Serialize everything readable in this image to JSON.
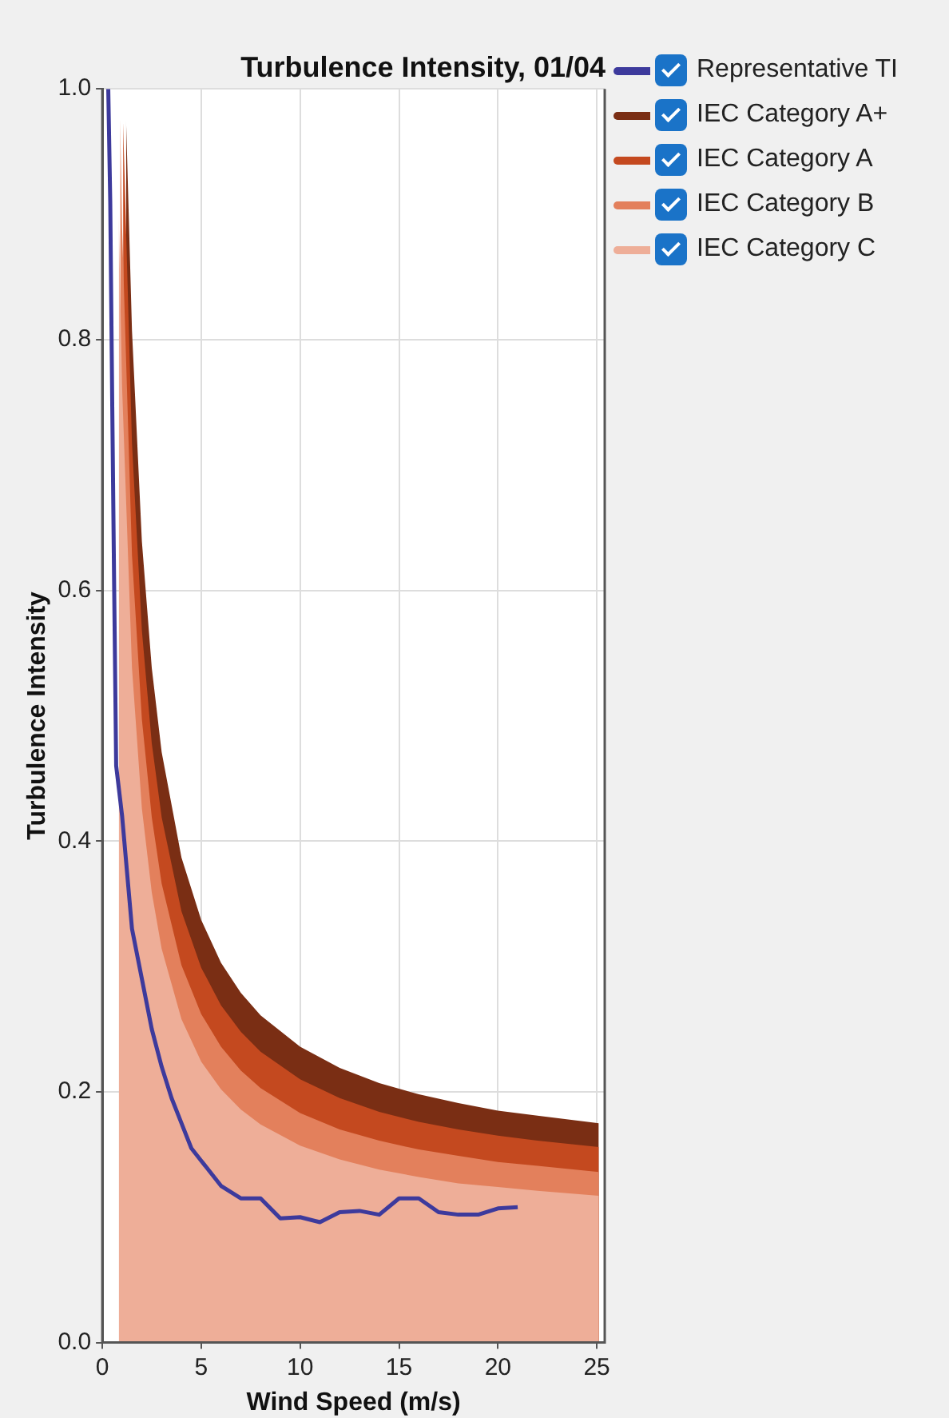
{
  "chart_data": {
    "type": "area",
    "title": "Turbulence Intensity, 01/04",
    "xlabel": "Wind Speed (m/s)",
    "ylabel": "Turbulence Intensity",
    "xlim": [
      0,
      25.4
    ],
    "xticks": [
      0,
      5,
      10,
      15,
      20,
      25
    ],
    "ylim": [
      0,
      1
    ],
    "yticks": [
      {
        "value": 0,
        "label": "0.0"
      },
      {
        "value": 0.2,
        "label": "0.2"
      },
      {
        "value": 0.4,
        "label": "0.4"
      },
      {
        "value": 0.6,
        "label": "0.6"
      },
      {
        "value": 0.8,
        "label": "0.8"
      },
      {
        "value": 1,
        "label": "1.0"
      }
    ],
    "grid": true,
    "legend": "top right",
    "marker": "none",
    "series": [
      {
        "name": "Representative TI",
        "type": "line",
        "color": "#3d3a9c",
        "x": [
          0.3,
          0.4,
          0.5,
          0.6,
          0.7,
          1,
          1.5,
          2,
          2.5,
          3,
          3.5,
          4,
          4.5,
          5,
          6,
          7,
          8,
          9,
          10,
          11,
          12,
          13,
          14,
          15,
          16,
          17,
          18,
          19,
          20,
          21
        ],
        "values": [
          1.0,
          0.91,
          0.75,
          0.6,
          0.46,
          0.42,
          0.33,
          0.29,
          0.25,
          0.22,
          0.195,
          0.175,
          0.155,
          0.145,
          0.125,
          0.115,
          0.115,
          0.099,
          0.1,
          0.096,
          0.104,
          0.105,
          0.102,
          0.115,
          0.115,
          0.104,
          0.102,
          0.102,
          0.107,
          0.108
        ]
      },
      {
        "name": "IEC Category A+",
        "color": "#7a2e14",
        "x": [
          1.2,
          1.5,
          2,
          2.5,
          3,
          4,
          5,
          6,
          7,
          8,
          10,
          12,
          14,
          16,
          18,
          20,
          22,
          25.1
        ],
        "values": [
          0.975,
          0.807,
          0.639,
          0.538,
          0.471,
          0.387,
          0.337,
          0.303,
          0.279,
          0.261,
          0.236,
          0.219,
          0.207,
          0.198,
          0.191,
          0.185,
          0.181,
          0.175
        ]
      },
      {
        "name": "IEC Category A",
        "color": "#c4491f",
        "x": [
          1.05,
          1.5,
          2,
          2.5,
          3,
          4,
          5,
          6,
          7,
          8,
          10,
          12,
          14,
          16,
          18,
          20,
          22,
          25.1
        ],
        "values": [
          0.973,
          0.717,
          0.568,
          0.478,
          0.419,
          0.344,
          0.299,
          0.269,
          0.248,
          0.232,
          0.21,
          0.195,
          0.184,
          0.176,
          0.17,
          0.165,
          0.161,
          0.156
        ]
      },
      {
        "name": "IEC Category B",
        "color": "#e3805c",
        "x": [
          0.9,
          1,
          1.5,
          2,
          2.5,
          3,
          4,
          5,
          6,
          7,
          8,
          10,
          12,
          14,
          16,
          18,
          20,
          22,
          25.1
        ],
        "values": [
          0.976,
          0.889,
          0.628,
          0.497,
          0.419,
          0.366,
          0.301,
          0.262,
          0.236,
          0.217,
          0.203,
          0.183,
          0.17,
          0.161,
          0.154,
          0.149,
          0.144,
          0.141,
          0.136
        ]
      },
      {
        "name": "IEC Category C",
        "color": "#eeae98",
        "x": [
          0.83,
          1,
          1.5,
          2,
          2.5,
          3,
          4,
          5,
          6,
          7,
          8,
          10,
          12,
          14,
          16,
          18,
          20,
          22,
          25.1
        ],
        "values": [
          0.9,
          0.762,
          0.538,
          0.426,
          0.359,
          0.314,
          0.258,
          0.224,
          0.202,
          0.186,
          0.174,
          0.157,
          0.146,
          0.138,
          0.132,
          0.127,
          0.124,
          0.121,
          0.117
        ]
      }
    ]
  }
}
